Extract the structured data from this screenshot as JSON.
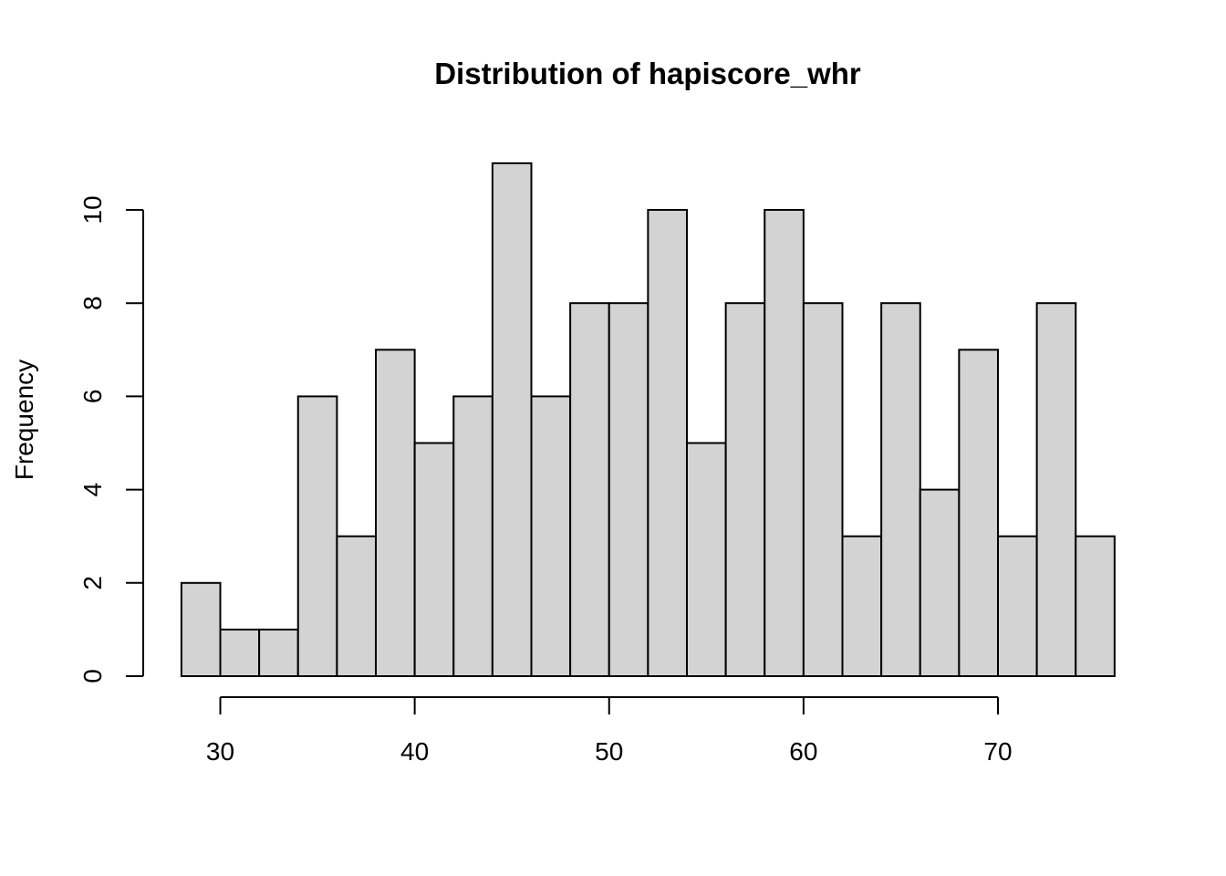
{
  "chart_data": {
    "type": "bar",
    "subtype": "histogram",
    "title": "Distribution of hapiscore_whr",
    "xlabel": "",
    "ylabel": "Frequency",
    "bin_edges": [
      28,
      30,
      32,
      34,
      36,
      38,
      40,
      42,
      44,
      46,
      48,
      50,
      52,
      54,
      56,
      58,
      60,
      62,
      64,
      66,
      68,
      70,
      72,
      74,
      76
    ],
    "values": [
      2,
      1,
      1,
      6,
      3,
      7,
      5,
      6,
      11,
      6,
      8,
      8,
      10,
      5,
      8,
      10,
      8,
      3,
      8,
      4,
      7,
      3,
      8,
      3
    ],
    "xlim": [
      30,
      70
    ],
    "ylim": [
      0,
      10
    ],
    "xticks": [
      30,
      40,
      50,
      60,
      70
    ],
    "yticks": [
      0,
      2,
      4,
      6,
      8,
      10
    ],
    "xtick_labels": [
      "30",
      "40",
      "50",
      "60",
      "70"
    ],
    "ytick_labels": [
      "0",
      "2",
      "4",
      "6",
      "8",
      "10"
    ],
    "bar_color": "#d3d3d3",
    "edge_color": "#000000",
    "grid": false
  }
}
